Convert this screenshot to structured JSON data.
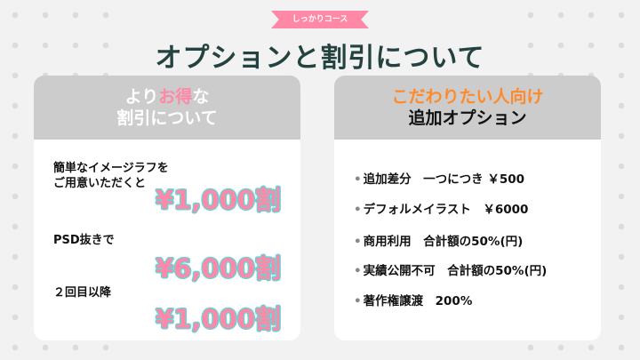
{
  "ribbon": "しっかりコース",
  "title": "オプションと割引について",
  "left": {
    "head_1a": "より",
    "head_1b": "お得",
    "head_1c": "な",
    "head_2": "割引について",
    "items": [
      {
        "label_1": "簡単なイメージラフを",
        "label_2": "ご用意いただくと",
        "price": "¥1,000割"
      },
      {
        "label_1": "PSD抜きで",
        "price": "¥6,000割"
      },
      {
        "label_1": "２回目以降",
        "price": "¥1,000割"
      }
    ]
  },
  "right": {
    "head_1": "こだわりたい人向け",
    "head_2": "追加オプション",
    "options": [
      "追加差分　一つにつき ￥500",
      "デフォルメイラスト　￥6000",
      "商用利用　合計額の50%(円)",
      "実績公開不可　合計額の50%(円)",
      "著作権譲渡　200%"
    ]
  },
  "colors": {
    "accent_pink": "#ff88a6",
    "accent_orange": "#ff8a2a",
    "title": "#234240",
    "outline": "#6ad2d6"
  }
}
